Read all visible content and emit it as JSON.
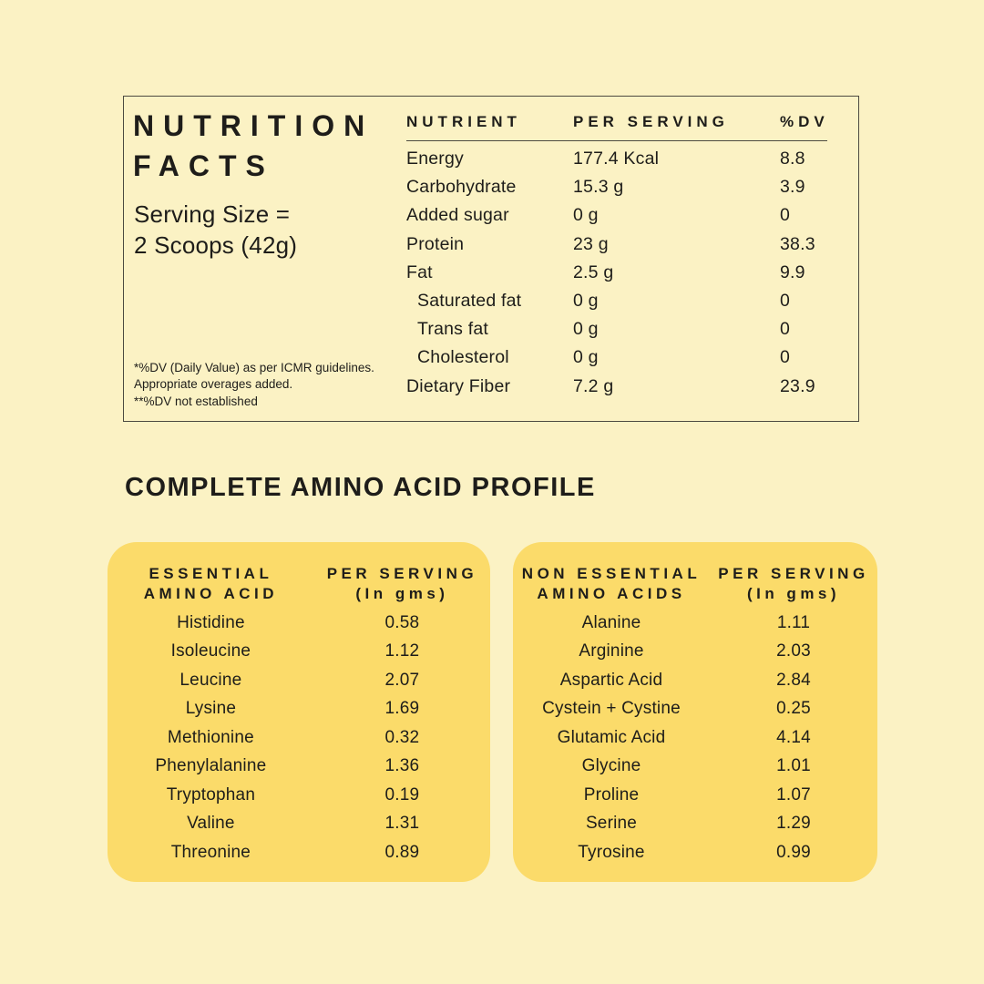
{
  "page": {
    "background_color": "#FBF2C4",
    "card_color": "#FBDB6A",
    "text_color": "#1E1D1A",
    "border_color": "#4C4A40"
  },
  "nutrition_panel": {
    "title_line1": "NUTRITION",
    "title_line2": "FACTS",
    "serving_line1": "Serving Size =",
    "serving_line2": "2 Scoops (42g)",
    "footnotes": [
      "*%DV (Daily Value) as per ICMR guidelines.",
      "Appropriate overages added.",
      "**%DV not established"
    ],
    "table": {
      "header_nutrient": "NUTRIENT",
      "header_per_serving": "PER SERVING",
      "header_dv": "%DV",
      "rows": [
        {
          "name": "Energy",
          "per_serving": "177.4 Kcal",
          "dv": "8.8",
          "indent": false
        },
        {
          "name": "Carbohydrate",
          "per_serving": "15.3 g",
          "dv": "3.9",
          "indent": false
        },
        {
          "name": "Added sugar",
          "per_serving": "0 g",
          "dv": "0",
          "indent": false
        },
        {
          "name": "Protein",
          "per_serving": "23 g",
          "dv": "38.3",
          "indent": false
        },
        {
          "name": "Fat",
          "per_serving": "2.5 g",
          "dv": "9.9",
          "indent": false
        },
        {
          "name": "Saturated fat",
          "per_serving": "0 g",
          "dv": "0",
          "indent": true
        },
        {
          "name": "Trans fat",
          "per_serving": "0 g",
          "dv": "0",
          "indent": true
        },
        {
          "name": "Cholesterol",
          "per_serving": "0 g",
          "dv": "0",
          "indent": true
        },
        {
          "name": "Dietary Fiber",
          "per_serving": "7.2 g",
          "dv": "23.9",
          "indent": false
        }
      ]
    }
  },
  "amino_section": {
    "heading": "COMPLETE AMINO ACID PROFILE",
    "essential": {
      "name_header_line1": "ESSENTIAL",
      "name_header_line2": "AMINO ACID",
      "value_header_line1": "PER SERVING",
      "value_header_line2": "(In gms)",
      "rows": [
        [
          "Histidine",
          "0.58"
        ],
        [
          "Isoleucine",
          "1.12"
        ],
        [
          "Leucine",
          "2.07"
        ],
        [
          "Lysine",
          "1.69"
        ],
        [
          "Methionine",
          "0.32"
        ],
        [
          "Phenylalanine",
          "1.36"
        ],
        [
          "Tryptophan",
          "0.19"
        ],
        [
          "Valine",
          "1.31"
        ],
        [
          "Threonine",
          "0.89"
        ]
      ]
    },
    "non_essential": {
      "name_header_line1": "NON ESSENTIAL",
      "name_header_line2": "AMINO ACIDS",
      "value_header_line1": "PER SERVING",
      "value_header_line2": "(In gms)",
      "rows": [
        [
          "Alanine",
          "1.11"
        ],
        [
          "Arginine",
          "2.03"
        ],
        [
          "Aspartic Acid",
          "2.84"
        ],
        [
          "Cystein + Cystine",
          "0.25"
        ],
        [
          "Glutamic Acid",
          "4.14"
        ],
        [
          "Glycine",
          "1.01"
        ],
        [
          "Proline",
          "1.07"
        ],
        [
          "Serine",
          "1.29"
        ],
        [
          "Tyrosine",
          "0.99"
        ]
      ]
    }
  }
}
